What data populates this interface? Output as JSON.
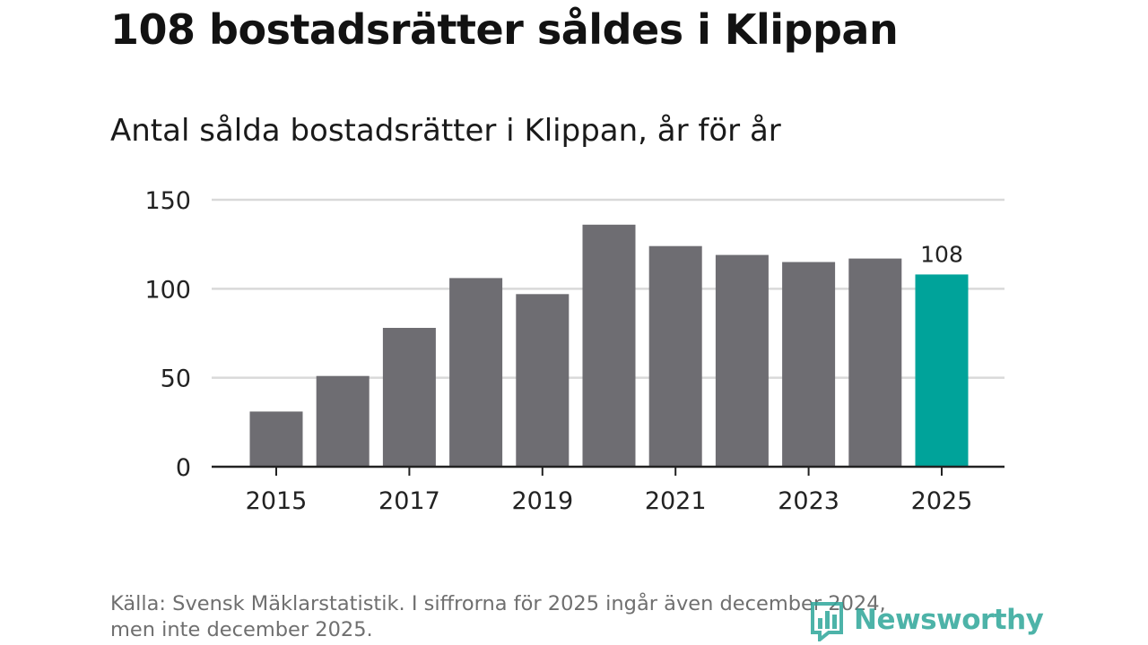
{
  "title": "108 bostadsrätter såldes i Klippan",
  "subtitle": "Antal sålda bostadsrätter i Klippan, år för år",
  "source_line1": "Källa: Svensk Mäklarstatistik. I siffrorna för 2025 ingår även december 2024,",
  "source_line2": "men inte december 2025.",
  "logo": {
    "text": "Newsworthy",
    "icon": "bar-chart-logo-icon",
    "color": "#2ea69a"
  },
  "colors": {
    "bar": "#6e6d72",
    "highlight": "#00a39a",
    "grid": "#d9d9d9",
    "axis": "#222222"
  },
  "chart_data": {
    "type": "bar",
    "title": "Antal sålda bostadsrätter i Klippan, år för år",
    "xlabel": "",
    "ylabel": "",
    "categories": [
      "2015",
      "2016",
      "2017",
      "2018",
      "2019",
      "2020",
      "2021",
      "2022",
      "2023",
      "2024",
      "2025"
    ],
    "values": [
      31,
      51,
      78,
      106,
      97,
      136,
      124,
      119,
      115,
      117,
      108
    ],
    "highlight_index": 10,
    "data_labels": [
      {
        "index": 10,
        "text": "108"
      }
    ],
    "x_tick_labels": [
      "2015",
      "2017",
      "2019",
      "2021",
      "2023",
      "2025"
    ],
    "y_ticks": [
      0,
      50,
      100,
      150
    ],
    "ylim": [
      0,
      150
    ],
    "grid": true
  }
}
